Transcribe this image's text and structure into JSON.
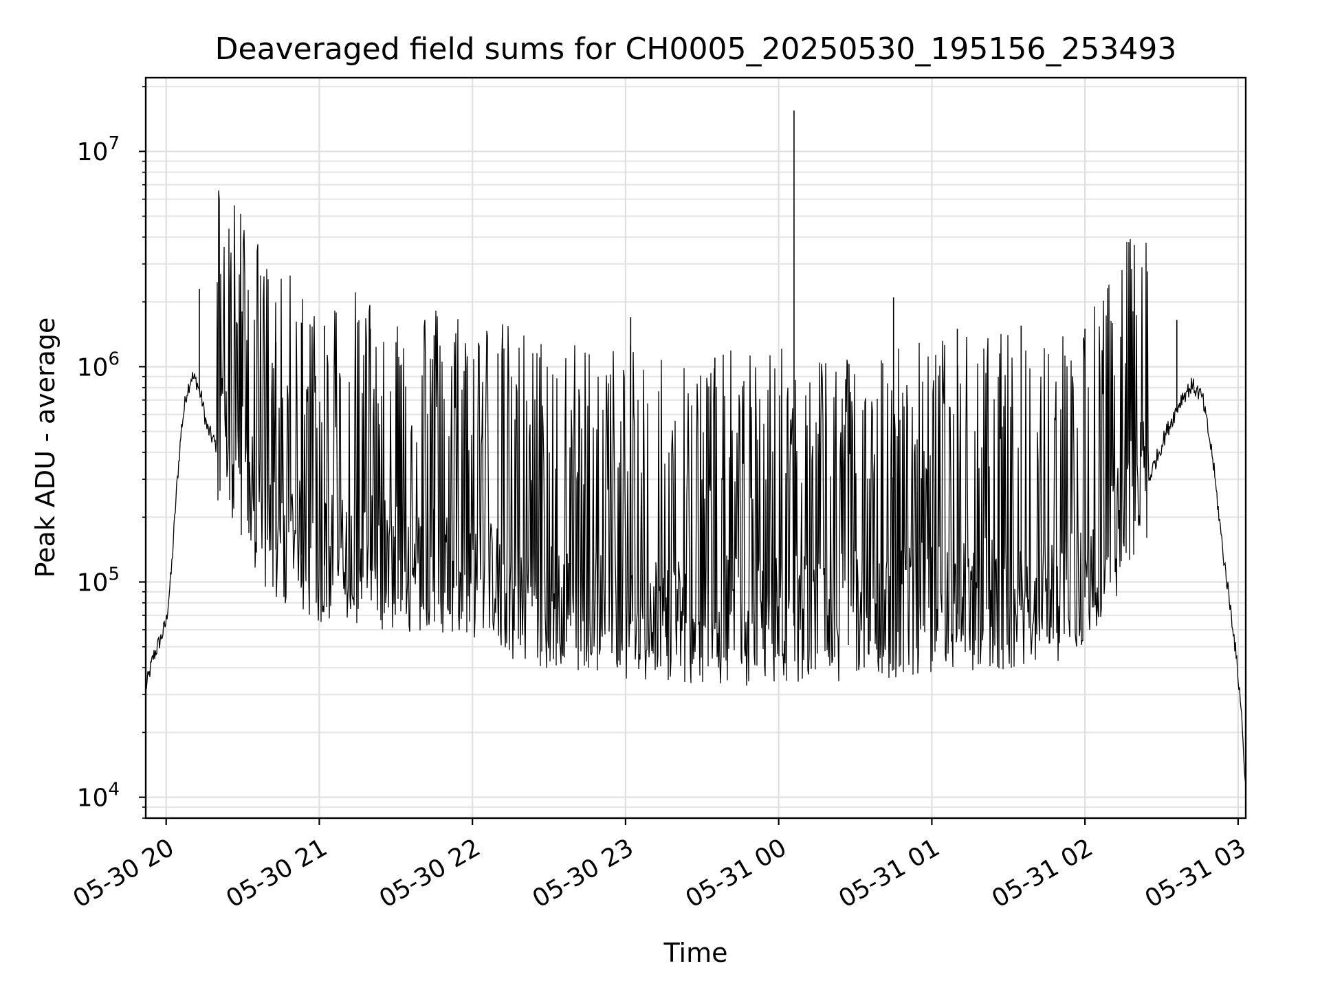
{
  "chart_data": {
    "type": "line",
    "title": "Deaveraged field sums for CH0005_20250530_195156_253493",
    "xlabel": "Time",
    "ylabel": "Peak ADU - average",
    "yscale": "log",
    "ylim": [
      8000,
      22000000
    ],
    "xlim": [
      "2025-05-30 19:52",
      "2025-05-31 03:03"
    ],
    "grid": true,
    "line_color": "#000000",
    "x_ticks": [
      {
        "label": "05-30 20",
        "value": "2025-05-30 20:00"
      },
      {
        "label": "05-30 21",
        "value": "2025-05-30 21:00"
      },
      {
        "label": "05-30 22",
        "value": "2025-05-30 22:00"
      },
      {
        "label": "05-30 23",
        "value": "2025-05-30 23:00"
      },
      {
        "label": "05-31 00",
        "value": "2025-05-31 00:00"
      },
      {
        "label": "05-31 01",
        "value": "2025-05-31 01:00"
      },
      {
        "label": "05-31 02",
        "value": "2025-05-31 02:00"
      },
      {
        "label": "05-31 03",
        "value": "2025-05-31 03:00"
      }
    ],
    "y_ticks": [
      {
        "base": "10",
        "exp": "4",
        "value": 10000
      },
      {
        "base": "10",
        "exp": "5",
        "value": 100000
      },
      {
        "base": "10",
        "exp": "6",
        "value": 1000000
      },
      {
        "base": "10",
        "exp": "7",
        "value": 10000000
      }
    ],
    "series": [
      {
        "x": [
          "2025-05-30 19:52",
          "2025-05-30 19:55",
          "2025-05-30 19:58",
          "2025-05-30 20:00",
          "2025-05-30 20:02",
          "2025-05-30 20:04",
          "2025-05-30 20:06",
          "2025-05-30 20:08",
          "2025-05-30 20:10",
          "2025-05-30 20:12",
          "2025-05-30 20:14",
          "2025-05-30 20:16",
          "2025-05-30 20:20",
          "2025-05-30 20:25",
          "2025-05-30 20:30",
          "2025-05-30 20:35",
          "2025-05-30 20:40",
          "2025-05-30 20:45",
          "2025-05-30 20:50",
          "2025-05-30 21:00",
          "2025-05-30 21:15",
          "2025-05-30 21:30",
          "2025-05-30 21:45",
          "2025-05-30 22:00",
          "2025-05-30 22:15",
          "2025-05-30 22:30",
          "2025-05-30 22:45",
          "2025-05-30 23:00",
          "2025-05-30 23:20",
          "2025-05-30 23:40",
          "2025-05-31 00:00",
          "2025-05-31 00:20",
          "2025-05-31 00:40",
          "2025-05-31 01:00",
          "2025-05-31 01:20",
          "2025-05-31 01:40",
          "2025-05-31 02:00",
          "2025-05-31 02:15",
          "2025-05-31 02:25",
          "2025-05-31 02:32",
          "2025-05-31 02:38",
          "2025-05-31 02:42",
          "2025-05-31 02:46",
          "2025-05-31 02:50",
          "2025-05-31 02:54",
          "2025-05-31 02:58",
          "2025-05-31 03:01",
          "2025-05-31 03:03"
        ],
        "values": [
          32000,
          45000,
          55000,
          65000,
          110000,
          260000,
          520000,
          760000,
          900000,
          850000,
          700000,
          520000,
          420000,
          360000,
          300000,
          210000,
          160000,
          130000,
          140000,
          120000,
          115000,
          110000,
          105000,
          95000,
          80000,
          70000,
          66000,
          64000,
          62000,
          60000,
          62000,
          64000,
          66000,
          70000,
          72000,
          75000,
          85000,
          180000,
          300000,
          500000,
          720000,
          820000,
          720000,
          380000,
          140000,
          62000,
          28000,
          11000
        ],
        "spikes": [
          {
            "x": "2025-05-30 20:13",
            "y": 2300000
          },
          {
            "x": "2025-05-30 20:43",
            "y": 1300000
          },
          {
            "x": "2025-05-30 20:53",
            "y": 1600000
          },
          {
            "x": "2025-05-30 21:02",
            "y": 1550000
          },
          {
            "x": "2025-05-30 21:20",
            "y": 1500000
          },
          {
            "x": "2025-05-30 21:45",
            "y": 1400000
          },
          {
            "x": "2025-05-30 22:10",
            "y": 1150000
          },
          {
            "x": "2025-05-30 23:02",
            "y": 1700000
          },
          {
            "x": "2025-05-30 23:35",
            "y": 1100000
          },
          {
            "x": "2025-05-31 00:06",
            "y": 15500000
          },
          {
            "x": "2025-05-31 00:45",
            "y": 2100000
          },
          {
            "x": "2025-05-31 01:10",
            "y": 1500000
          },
          {
            "x": "2025-05-31 01:35",
            "y": 1550000
          },
          {
            "x": "2025-05-31 02:00",
            "y": 1500000
          },
          {
            "x": "2025-05-31 02:36",
            "y": 1650000
          }
        ]
      }
    ]
  }
}
